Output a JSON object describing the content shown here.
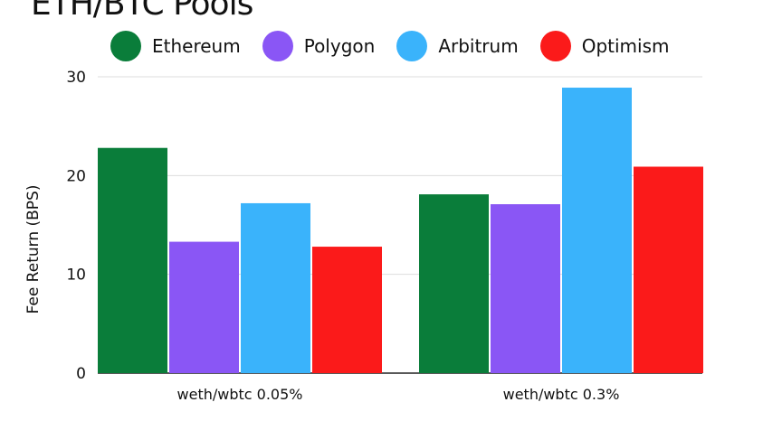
{
  "chart_data": {
    "type": "bar",
    "title": "ETH/BTC Pools",
    "ylabel": "Fee Return (BPS)",
    "xlabel": "",
    "categories": [
      "weth/wbtc 0.05%",
      "weth/wbtc 0.3%"
    ],
    "ylim": [
      0,
      30
    ],
    "yticks": [
      0,
      10,
      20,
      30
    ],
    "grid": true,
    "legend_position": "top",
    "series": [
      {
        "name": "Ethereum",
        "color": "#0a7d3a",
        "values": [
          22.8,
          18.1
        ]
      },
      {
        "name": "Polygon",
        "color": "#8a56f5",
        "values": [
          13.3,
          17.1
        ]
      },
      {
        "name": "Arbitrum",
        "color": "#3ab3fb",
        "values": [
          17.2,
          28.9
        ]
      },
      {
        "name": "Optimism",
        "color": "#fb1a1a",
        "values": [
          12.8,
          20.9
        ]
      }
    ]
  }
}
